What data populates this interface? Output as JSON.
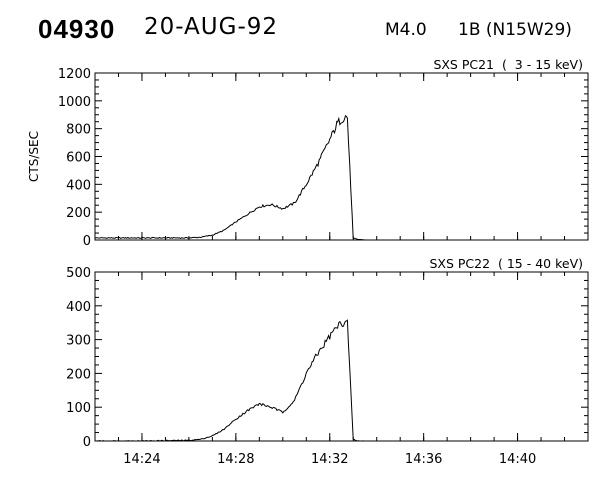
{
  "header": {
    "event_id": "04930",
    "date": "20-AUG-92",
    "flare_class": "M4.0",
    "region": "1B (N15W29)"
  },
  "chart_data": [
    {
      "type": "line",
      "title": "SXS PC21  (  3 - 15 keV)",
      "ylabel": "CTS/SEC",
      "xlabel": "",
      "xlim": [
        "14:22",
        "14:43"
      ],
      "ylim": [
        0,
        1200
      ],
      "yticks": [
        0,
        200,
        400,
        600,
        800,
        1000,
        1200
      ],
      "xticks": [
        "14:24",
        "14:28",
        "14:32",
        "14:36",
        "14:40"
      ],
      "x": [
        "14:22",
        "14:24",
        "14:26",
        "14:26:30",
        "14:27",
        "14:27:30",
        "14:28",
        "14:28:30",
        "14:29",
        "14:29:30",
        "14:30",
        "14:30:30",
        "14:31",
        "14:31:30",
        "14:32",
        "14:32:20",
        "14:32:40",
        "14:32:45",
        "14:33",
        "14:33:10",
        "14:33:30"
      ],
      "values": [
        15,
        15,
        15,
        20,
        35,
        70,
        130,
        185,
        240,
        255,
        225,
        265,
        400,
        550,
        720,
        840,
        890,
        880,
        10,
        5,
        0
      ]
    },
    {
      "type": "line",
      "title": "SXS PC22  ( 15 - 40 keV)",
      "ylabel": "",
      "xlabel": "",
      "xlim": [
        "14:22",
        "14:43"
      ],
      "ylim": [
        0,
        500
      ],
      "yticks": [
        0,
        100,
        200,
        300,
        400,
        500
      ],
      "xticks": [
        "14:24",
        "14:28",
        "14:32",
        "14:36",
        "14:40"
      ],
      "x": [
        "14:22",
        "14:24",
        "14:26",
        "14:26:30",
        "14:27",
        "14:27:30",
        "14:28",
        "14:28:30",
        "14:29",
        "14:29:30",
        "14:30",
        "14:30:30",
        "14:31",
        "14:31:30",
        "14:32",
        "14:32:20",
        "14:32:40",
        "14:32:45",
        "14:33",
        "14:33:10",
        "14:33:30"
      ],
      "values": [
        0,
        0,
        2,
        5,
        15,
        35,
        65,
        90,
        110,
        100,
        85,
        120,
        200,
        260,
        310,
        340,
        355,
        350,
        5,
        0,
        0
      ]
    }
  ]
}
